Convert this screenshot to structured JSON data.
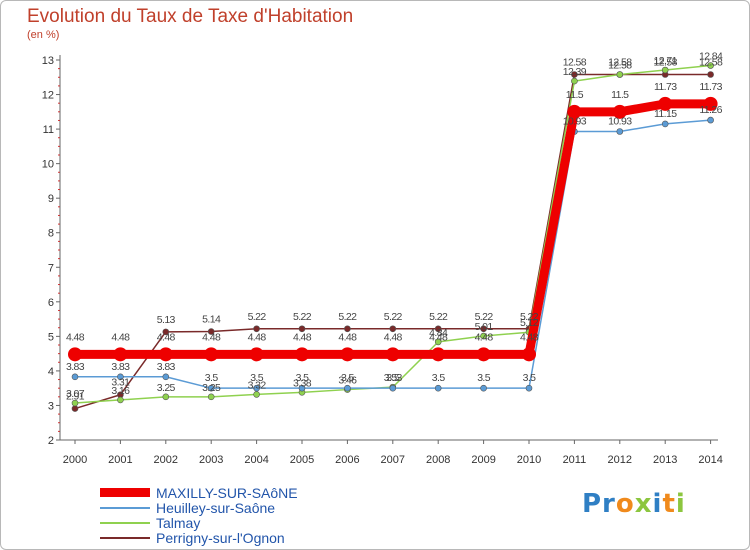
{
  "logo_text": "Proxiti",
  "chart_data": {
    "type": "line",
    "title": "Evolution du Taux de Taxe d'Habitation",
    "ylabel": "(en %)",
    "xlabel": "",
    "x": [
      "2000",
      "2001",
      "2002",
      "2003",
      "2004",
      "2005",
      "2006",
      "2007",
      "2008",
      "2009",
      "2010",
      "2011",
      "2012",
      "2013",
      "2014"
    ],
    "ylim": [
      2,
      13
    ],
    "yticks": [
      2,
      3,
      4,
      5,
      6,
      7,
      8,
      9,
      10,
      11,
      12,
      13
    ],
    "grid": false,
    "series": [
      {
        "name": "MAXILLY-SUR-SAôNE",
        "color": "#ee0000",
        "values": [
          4.48,
          4.48,
          4.48,
          4.48,
          4.48,
          4.48,
          4.48,
          4.48,
          4.48,
          4.48,
          4.48,
          11.5,
          11.5,
          11.73,
          11.73
        ],
        "labels": [
          "4.48",
          "4.48",
          "4.48",
          "4.48",
          "4.48",
          "4.48",
          "4.48",
          "4.48",
          "4.48",
          "4.48",
          "4.48",
          "11.5",
          "11.5",
          "11.73",
          "11.73"
        ]
      },
      {
        "name": "Heuilley-sur-Saône",
        "color": "#5b9bd5",
        "values": [
          3.83,
          3.83,
          3.83,
          3.5,
          3.5,
          3.5,
          3.5,
          3.5,
          3.5,
          3.5,
          3.5,
          10.93,
          10.93,
          11.15,
          11.26
        ],
        "labels": [
          "3.83",
          "3.83",
          "3.83",
          "3.5",
          "3.5",
          "3.5",
          "3.5",
          "3.5",
          "3.5",
          "3.5",
          "3.5",
          "10.93",
          "10.93",
          "11.15",
          "11.26"
        ]
      },
      {
        "name": "Talmay",
        "color": "#8fd14f",
        "values": [
          3.07,
          3.16,
          3.25,
          3.25,
          3.32,
          3.38,
          3.46,
          3.53,
          4.84,
          5.01,
          5.12,
          12.39,
          12.58,
          12.71,
          12.84
        ],
        "labels": [
          "3.07",
          "3.16",
          "3.25",
          "3.25",
          "3.32",
          "3.38",
          "3.46",
          "3.53",
          "4.84",
          "5.01",
          "5.12",
          "12.39",
          "12.58",
          "12.71",
          "12.84"
        ]
      },
      {
        "name": "Perrigny-sur-l'Ognon",
        "color": "#7a2a2a",
        "values": [
          2.91,
          3.31,
          5.13,
          5.14,
          5.22,
          5.22,
          5.22,
          5.22,
          5.22,
          5.22,
          5.22,
          12.58,
          12.58,
          12.58,
          12.58
        ],
        "labels": [
          "2.91",
          "3.31",
          "5.13",
          "5.14",
          "5.22",
          "5.22",
          "5.22",
          "5.22",
          "5.22",
          "5.22",
          "5.22",
          "12.58",
          "12.58",
          "12.58",
          "12.58"
        ]
      }
    ]
  }
}
